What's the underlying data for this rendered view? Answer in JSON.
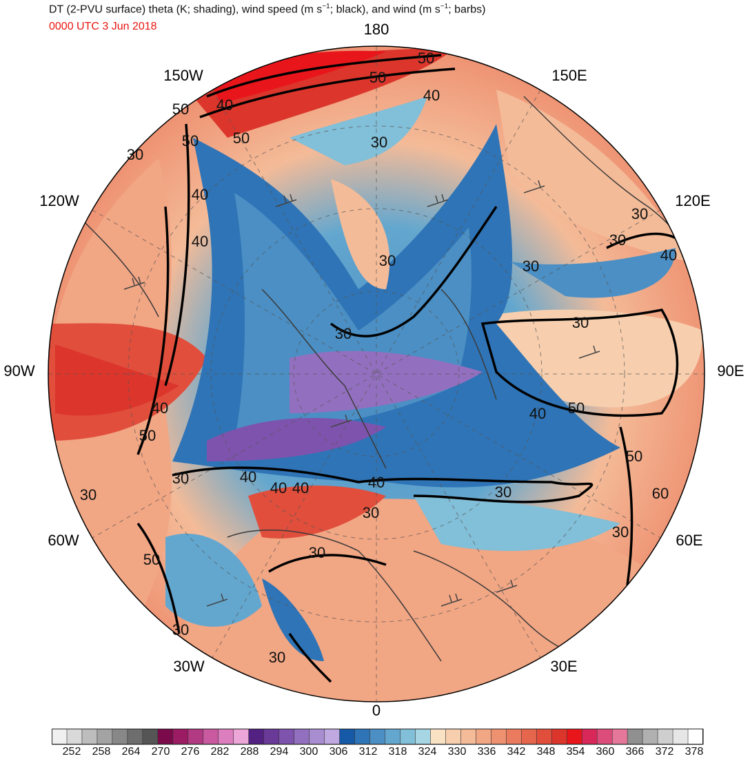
{
  "title": {
    "main_a": "DT (2-PVU surface) theta (K; shading), wind speed (m s",
    "sup1": "−1",
    "main_b": "; black), and wind (m s",
    "sup2": "−1",
    "main_c": "; barbs)"
  },
  "subtitle": "0000 UTC 3 Jun 2018",
  "projection": "north-polar-stereographic",
  "longitude_labels": [
    "180",
    "150E",
    "120E",
    "90E",
    "60E",
    "30E",
    "0",
    "30W",
    "60W",
    "90W",
    "120W",
    "150W"
  ],
  "contour_labels": [
    "50",
    "50",
    "40",
    "40",
    "30",
    "30",
    "30",
    "40",
    "40",
    "30",
    "30",
    "30",
    "40",
    "40",
    "50",
    "50",
    "40",
    "40",
    "30",
    "30",
    "40",
    "40",
    "30",
    "30",
    "30",
    "30",
    "30",
    "30",
    "40",
    "50",
    "60",
    "30",
    "50",
    "30",
    "50",
    "50",
    "50"
  ],
  "colors": {
    "land_outline": "#3a3a3a",
    "contour": "#000000",
    "subtitle": "#e8140f",
    "palette": [
      "#f0f0f0",
      "#d9d9d9",
      "#bdbdbd",
      "#a3a3a3",
      "#888888",
      "#6e6e6e",
      "#555555",
      "#7a0a4a",
      "#9b1c63",
      "#b23a82",
      "#c95aa0",
      "#dd7fbf",
      "#eda6d8",
      "#532182",
      "#6a3a99",
      "#7e53ad",
      "#9370bf",
      "#a98dd1",
      "#bfa9e0",
      "#1659a6",
      "#2f74b6",
      "#4b8fc4",
      "#63a7cf",
      "#82bfd8",
      "#a6d5e3",
      "#f9e2c3",
      "#f7cfae",
      "#f4bb98",
      "#f1a684",
      "#ee9171",
      "#ea7b5f",
      "#e6654d",
      "#e14e3c",
      "#dc362c",
      "#e8161b",
      "#d8285a",
      "#dd4d7c",
      "#e4779a",
      "#909090",
      "#b0b0b0",
      "#cfcfcf",
      "#e6e6e6",
      "#ffffff"
    ]
  },
  "colorbar": {
    "labels": [
      "252",
      "258",
      "264",
      "270",
      "276",
      "282",
      "288",
      "294",
      "300",
      "306",
      "312",
      "318",
      "324",
      "330",
      "336",
      "342",
      "348",
      "354",
      "360",
      "366",
      "372",
      "378"
    ]
  }
}
